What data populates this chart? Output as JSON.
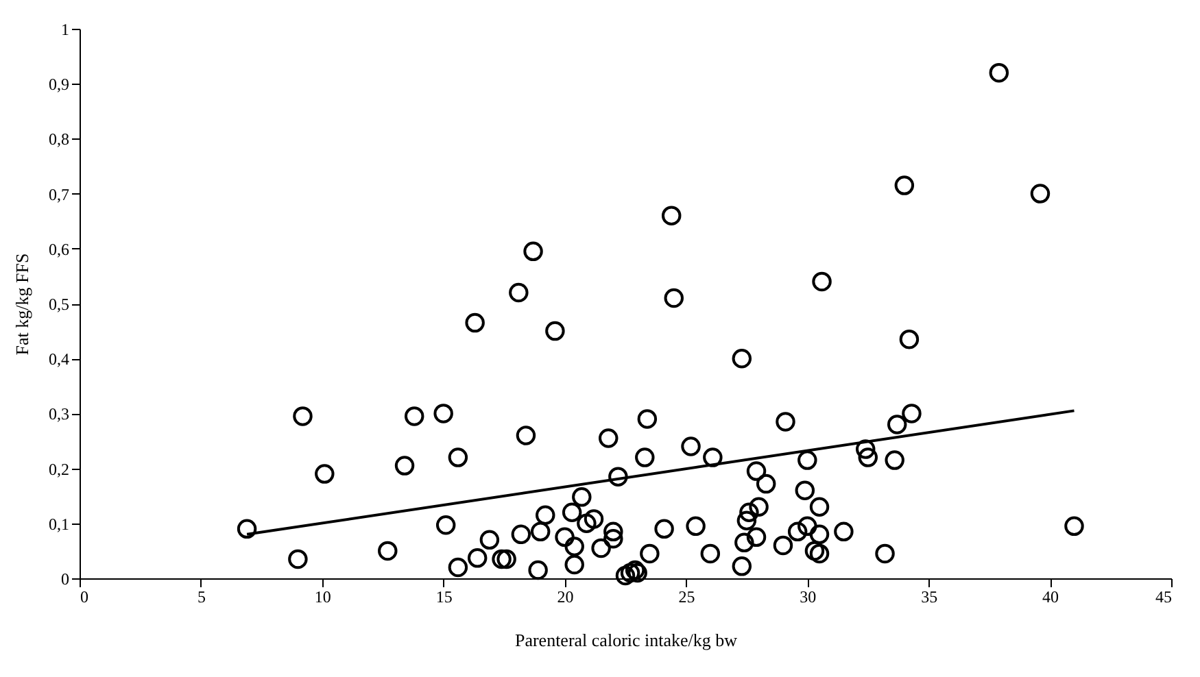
{
  "chart_data": {
    "type": "scatter",
    "xlabel": "Parenteral caloric intake/kg bw",
    "ylabel": "Fat kg/kg FFS",
    "marker": "circle",
    "grid": false,
    "xlim": [
      0,
      45
    ],
    "xticks": [
      0,
      5,
      10,
      15,
      20,
      25,
      30,
      35,
      40,
      45
    ],
    "ylim": [
      0,
      1
    ],
    "yticks": [
      0,
      {
        "value": 0.1,
        "label": "0,1"
      },
      {
        "value": 0.2,
        "label": "0,2"
      },
      {
        "value": 0.3,
        "label": "0,3"
      },
      {
        "value": 0.4,
        "label": "0,4"
      },
      {
        "value": 0.5,
        "label": "0,5"
      },
      {
        "value": 0.6,
        "label": "0,6"
      },
      {
        "value": 0.7,
        "label": "0,7"
      },
      {
        "value": 0.8,
        "label": "0,8"
      },
      {
        "value": 0.9,
        "label": "0,9"
      },
      1
    ],
    "series": [
      {
        "color": "#000000",
        "x": [
          6.9,
          9.0,
          9.2,
          10.1,
          12.7,
          13.4,
          13.8,
          15.0,
          15.1,
          15.6,
          15.6,
          16.3,
          16.4,
          16.9,
          17.4,
          17.6,
          18.1,
          18.2,
          18.4,
          18.7,
          18.9,
          19.0,
          19.2,
          19.6,
          20.0,
          20.3,
          20.4,
          20.4,
          20.7,
          20.9,
          21.2,
          21.5,
          21.8,
          22.0,
          22.0,
          22.2,
          22.5,
          22.7,
          22.9,
          23.0,
          23.3,
          23.4,
          23.5,
          24.1,
          24.4,
          24.5,
          25.2,
          25.4,
          26.0,
          26.1,
          27.3,
          27.3,
          27.4,
          27.5,
          27.6,
          27.9,
          27.9,
          28.0,
          28.3,
          29.0,
          29.1,
          29.6,
          29.9,
          30.0,
          30.0,
          30.3,
          30.5,
          30.5,
          30.5,
          30.6,
          31.5,
          32.4,
          32.5,
          33.2,
          33.6,
          33.7,
          34.0,
          34.2,
          34.3,
          37.9,
          39.6,
          41.0
        ],
        "values": [
          0.09,
          0.035,
          0.295,
          0.19,
          0.05,
          0.205,
          0.295,
          0.3,
          0.097,
          0.22,
          0.02,
          0.465,
          0.037,
          0.07,
          0.035,
          0.035,
          0.52,
          0.08,
          0.26,
          0.595,
          0.015,
          0.085,
          0.115,
          0.45,
          0.075,
          0.12,
          0.058,
          0.025,
          0.148,
          0.1,
          0.108,
          0.055,
          0.255,
          0.085,
          0.072,
          0.185,
          0.005,
          0.01,
          0.015,
          0.01,
          0.22,
          0.29,
          0.045,
          0.09,
          0.66,
          0.51,
          0.24,
          0.095,
          0.045,
          0.22,
          0.4,
          0.022,
          0.065,
          0.105,
          0.12,
          0.195,
          0.075,
          0.13,
          0.172,
          0.06,
          0.285,
          0.085,
          0.16,
          0.215,
          0.095,
          0.05,
          0.045,
          0.13,
          0.08,
          0.54,
          0.085,
          0.235,
          0.22,
          0.045,
          0.215,
          0.28,
          0.715,
          0.435,
          0.3,
          0.92,
          0.7,
          0.095
        ]
      },
      {
        "type": "line",
        "color": "#000000",
        "line_style": "solid",
        "marker": "none",
        "x": [
          6.9,
          41.0
        ],
        "values": [
          0.08,
          0.305
        ]
      }
    ]
  }
}
